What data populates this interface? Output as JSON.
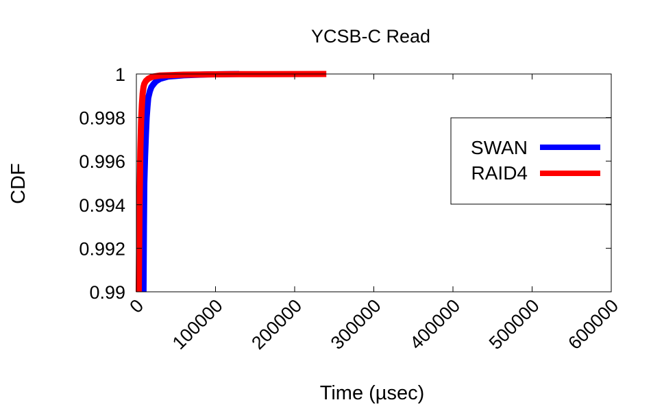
{
  "chart_data": {
    "type": "line",
    "title": "YCSB-C Read",
    "xlabel": "Time (µsec)",
    "ylabel": "CDF",
    "xlim": [
      0,
      600000
    ],
    "ylim": [
      0.99,
      1.0
    ],
    "x_ticks": [
      "0",
      "100000",
      "200000",
      "300000",
      "400000",
      "500000",
      "600000"
    ],
    "x_tick_values": [
      0,
      100000,
      200000,
      300000,
      400000,
      500000,
      600000
    ],
    "y_ticks": [
      "0.99",
      "0.992",
      "0.994",
      "0.996",
      "0.998",
      "1"
    ],
    "y_tick_values": [
      0.99,
      0.992,
      0.994,
      0.996,
      0.998,
      1.0
    ],
    "grid": false,
    "legend_position": "top-right",
    "series": [
      {
        "name": "SWAN",
        "color": "#0000ff",
        "x": [
          9000,
          9500,
          10000,
          11000,
          12000,
          13000,
          14000,
          15000,
          17000,
          19000,
          22000,
          25000,
          30000,
          40000,
          60000,
          90000,
          130000
        ],
        "y": [
          0.99,
          0.993,
          0.995,
          0.9962,
          0.9972,
          0.998,
          0.9985,
          0.9989,
          0.9992,
          0.9994,
          0.99955,
          0.99967,
          0.99978,
          0.99988,
          0.99994,
          0.99998,
          1.0
        ]
      },
      {
        "name": "RAID4",
        "color": "#ff0000",
        "x": [
          3000,
          4000,
          5000,
          6000,
          7000,
          8000,
          9000,
          10000,
          12000,
          15000,
          20000,
          30000,
          60000,
          120000,
          240000
        ],
        "y": [
          0.99,
          0.994,
          0.9965,
          0.9978,
          0.9986,
          0.9991,
          0.9994,
          0.99955,
          0.99968,
          0.99978,
          0.99987,
          0.99993,
          0.99997,
          0.99999,
          1.0
        ]
      }
    ]
  }
}
